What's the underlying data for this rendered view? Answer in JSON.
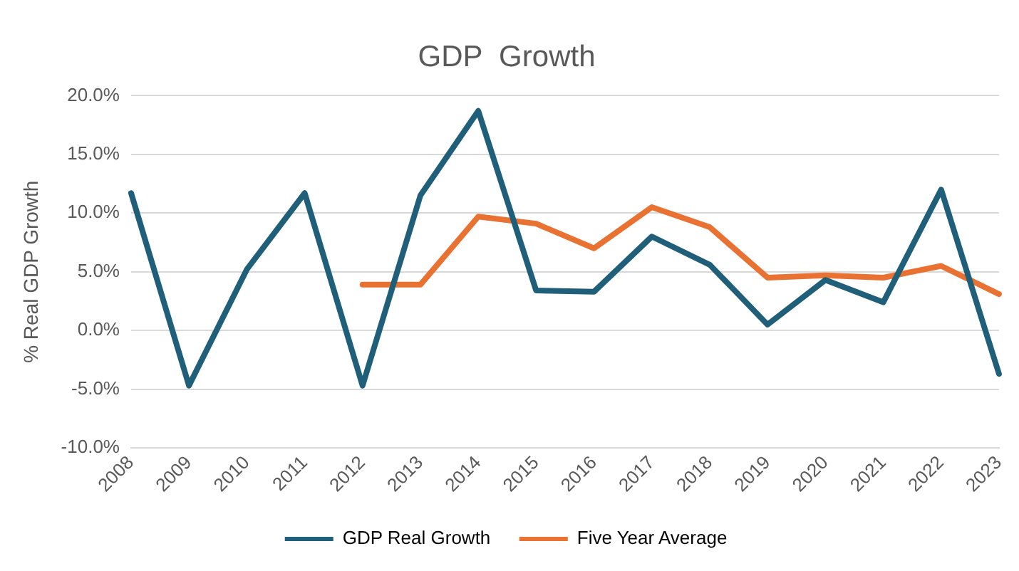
{
  "chart_data": {
    "type": "line",
    "title": "GDP  Growth",
    "ylabel": "% Real GDP Growth",
    "categories": [
      "2008",
      "2009",
      "2010",
      "2011",
      "2012",
      "2013",
      "2014",
      "2015",
      "2016",
      "2017",
      "2018",
      "2019",
      "2020",
      "2021",
      "2022",
      "2023"
    ],
    "series": [
      {
        "name": "GDP Real Growth",
        "color": "#1f5f7a",
        "values": [
          11.7,
          -4.7,
          5.2,
          11.7,
          -4.7,
          11.5,
          18.7,
          3.4,
          3.3,
          8.0,
          5.6,
          0.5,
          4.3,
          2.4,
          12.0,
          -3.7
        ]
      },
      {
        "name": "Five Year Average",
        "color": "#e97132",
        "values": [
          null,
          null,
          null,
          null,
          3.9,
          3.9,
          9.7,
          9.1,
          7.0,
          10.5,
          8.8,
          4.5,
          4.7,
          4.5,
          5.5,
          3.1
        ]
      }
    ],
    "ylim": [
      -10,
      20
    ],
    "yticks": [
      {
        "value": -10,
        "label": "-10.0%"
      },
      {
        "value": -5,
        "label": "-5.0%"
      },
      {
        "value": 0,
        "label": "0.0%"
      },
      {
        "value": 5,
        "label": "5.0%"
      },
      {
        "value": 10,
        "label": "10.0%"
      },
      {
        "value": 15,
        "label": "15.0%"
      },
      {
        "value": 20,
        "label": "20.0%"
      }
    ],
    "grid": "y",
    "legend": "bottom",
    "marker": "none",
    "line_style": "solid"
  }
}
